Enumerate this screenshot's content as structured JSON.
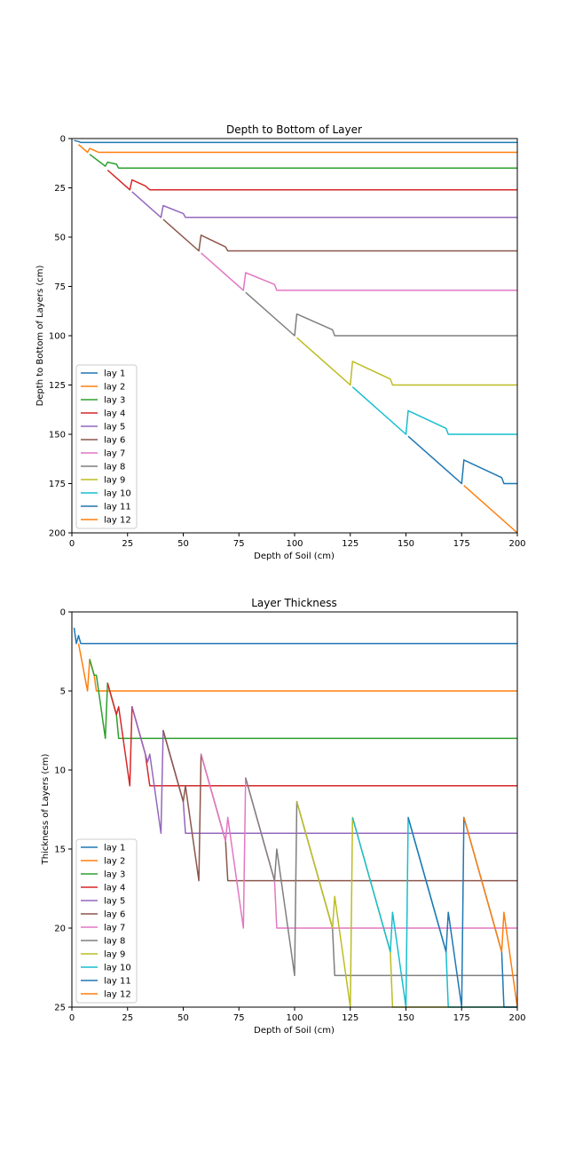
{
  "colors": [
    "#1f77b4",
    "#ff7f0e",
    "#2ca02c",
    "#d62728",
    "#9467bd",
    "#8c564b",
    "#e377c2",
    "#7f7f7f",
    "#bcbd22",
    "#17becf",
    "#1f77b4",
    "#ff7f0e"
  ],
  "chart_data": [
    {
      "type": "line",
      "title": "Depth to Bottom of Layer",
      "xlabel": "Depth of Soil (cm)",
      "ylabel": "Depth to Bottom of Layers (cm)",
      "xlim": [
        0,
        200
      ],
      "ylim": [
        200,
        0
      ],
      "y_inverted": true,
      "xticks": [
        0,
        25,
        50,
        75,
        100,
        125,
        150,
        175,
        200
      ],
      "yticks": [
        0,
        25,
        50,
        75,
        100,
        125,
        150,
        175,
        200
      ],
      "grid": false,
      "legend_position": "lower-left",
      "series": [
        {
          "name": "lay 1",
          "x": [
            1,
            3,
            4,
            200
          ],
          "y": [
            1,
            1.5,
            2,
            2
          ]
        },
        {
          "name": "lay 2",
          "x": [
            3,
            7,
            8,
            10,
            12,
            200
          ],
          "y": [
            3,
            7,
            5,
            6,
            7,
            7
          ]
        },
        {
          "name": "lay 3",
          "x": [
            8,
            15,
            16,
            20,
            21,
            200
          ],
          "y": [
            8,
            14,
            12,
            13,
            15,
            15
          ]
        },
        {
          "name": "lay 4",
          "x": [
            16,
            26,
            27,
            33,
            35,
            200
          ],
          "y": [
            16,
            26,
            21,
            24,
            26,
            26
          ]
        },
        {
          "name": "lay 5",
          "x": [
            27,
            40,
            41,
            50,
            51,
            200
          ],
          "y": [
            27,
            40,
            34,
            38,
            40,
            40
          ]
        },
        {
          "name": "lay 6",
          "x": [
            41,
            57,
            58,
            69,
            70,
            200
          ],
          "y": [
            41,
            57,
            49,
            55,
            57,
            57
          ]
        },
        {
          "name": "lay 7",
          "x": [
            58,
            77,
            78,
            91,
            92,
            200
          ],
          "y": [
            58,
            77,
            68,
            74,
            77,
            77
          ]
        },
        {
          "name": "lay 8",
          "x": [
            78,
            100,
            101,
            117,
            118,
            200
          ],
          "y": [
            78,
            100,
            89,
            97,
            100,
            100
          ]
        },
        {
          "name": "lay 9",
          "x": [
            101,
            125,
            126,
            143,
            144,
            200
          ],
          "y": [
            101,
            125,
            113,
            122,
            125,
            125
          ]
        },
        {
          "name": "lay 10",
          "x": [
            126,
            150,
            151,
            168,
            169,
            200
          ],
          "y": [
            126,
            150,
            138,
            147,
            150,
            150
          ]
        },
        {
          "name": "lay 11",
          "x": [
            151,
            175,
            176,
            193,
            194,
            200
          ],
          "y": [
            151,
            175,
            163,
            172,
            175,
            175
          ]
        },
        {
          "name": "lay 12",
          "x": [
            176,
            200
          ],
          "y": [
            176,
            200
          ]
        }
      ]
    },
    {
      "type": "line",
      "title": "Layer Thickness",
      "xlabel": "Depth of Soil (cm)",
      "ylabel": "Thickness of Layers (cm)",
      "xlim": [
        0,
        200
      ],
      "ylim": [
        25,
        0
      ],
      "y_inverted": true,
      "xticks": [
        0,
        25,
        50,
        75,
        100,
        125,
        150,
        175,
        200
      ],
      "yticks": [
        0,
        5,
        10,
        15,
        20,
        25
      ],
      "grid": false,
      "legend_position": "lower-left",
      "series": [
        {
          "name": "lay 1",
          "x": [
            1,
            2,
            3,
            4,
            200
          ],
          "y": [
            1,
            2,
            1.5,
            2,
            2
          ]
        },
        {
          "name": "lay 2",
          "x": [
            3,
            7,
            8,
            10,
            11,
            200
          ],
          "y": [
            2,
            5,
            3,
            4,
            5,
            5
          ]
        },
        {
          "name": "lay 3",
          "x": [
            8,
            10,
            11,
            15,
            16,
            20,
            21,
            200
          ],
          "y": [
            3,
            4,
            4,
            8,
            4.5,
            6.5,
            8,
            8
          ]
        },
        {
          "name": "lay 4",
          "x": [
            16,
            20,
            21,
            26,
            27,
            33,
            35,
            200
          ],
          "y": [
            4.5,
            6.5,
            6,
            11,
            6,
            9,
            11,
            11
          ]
        },
        {
          "name": "lay 5",
          "x": [
            27,
            34,
            35,
            40,
            41,
            50,
            51,
            200
          ],
          "y": [
            6,
            9.5,
            9,
            14,
            7.5,
            12,
            14,
            14
          ]
        },
        {
          "name": "lay 6",
          "x": [
            41,
            50,
            51,
            57,
            58,
            69,
            70,
            200
          ],
          "y": [
            7.5,
            12,
            11,
            17,
            9,
            14.5,
            17,
            17
          ]
        },
        {
          "name": "lay 7",
          "x": [
            58,
            69,
            70,
            77,
            78,
            91,
            92,
            200
          ],
          "y": [
            9,
            14.5,
            13,
            20,
            10.5,
            17,
            20,
            20
          ]
        },
        {
          "name": "lay 8",
          "x": [
            78,
            91,
            92,
            100,
            101,
            117,
            118,
            200
          ],
          "y": [
            10.5,
            17,
            15,
            23,
            12,
            20,
            23,
            23
          ]
        },
        {
          "name": "lay 9",
          "x": [
            101,
            117,
            118,
            125,
            126,
            143,
            144,
            200
          ],
          "y": [
            12,
            20,
            18,
            25,
            13,
            21.5,
            25,
            25
          ]
        },
        {
          "name": "lay 10",
          "x": [
            126,
            143,
            144,
            150,
            151,
            168,
            169,
            200
          ],
          "y": [
            13,
            21.5,
            19,
            25,
            13,
            21.5,
            25,
            25
          ]
        },
        {
          "name": "lay 11",
          "x": [
            151,
            168,
            169,
            175,
            176,
            193,
            194,
            200
          ],
          "y": [
            13,
            21.5,
            19,
            25,
            13,
            21.5,
            25,
            25
          ]
        },
        {
          "name": "lay 12",
          "x": [
            176,
            193,
            194,
            200
          ],
          "y": [
            13,
            21.5,
            19,
            25
          ]
        }
      ]
    }
  ]
}
